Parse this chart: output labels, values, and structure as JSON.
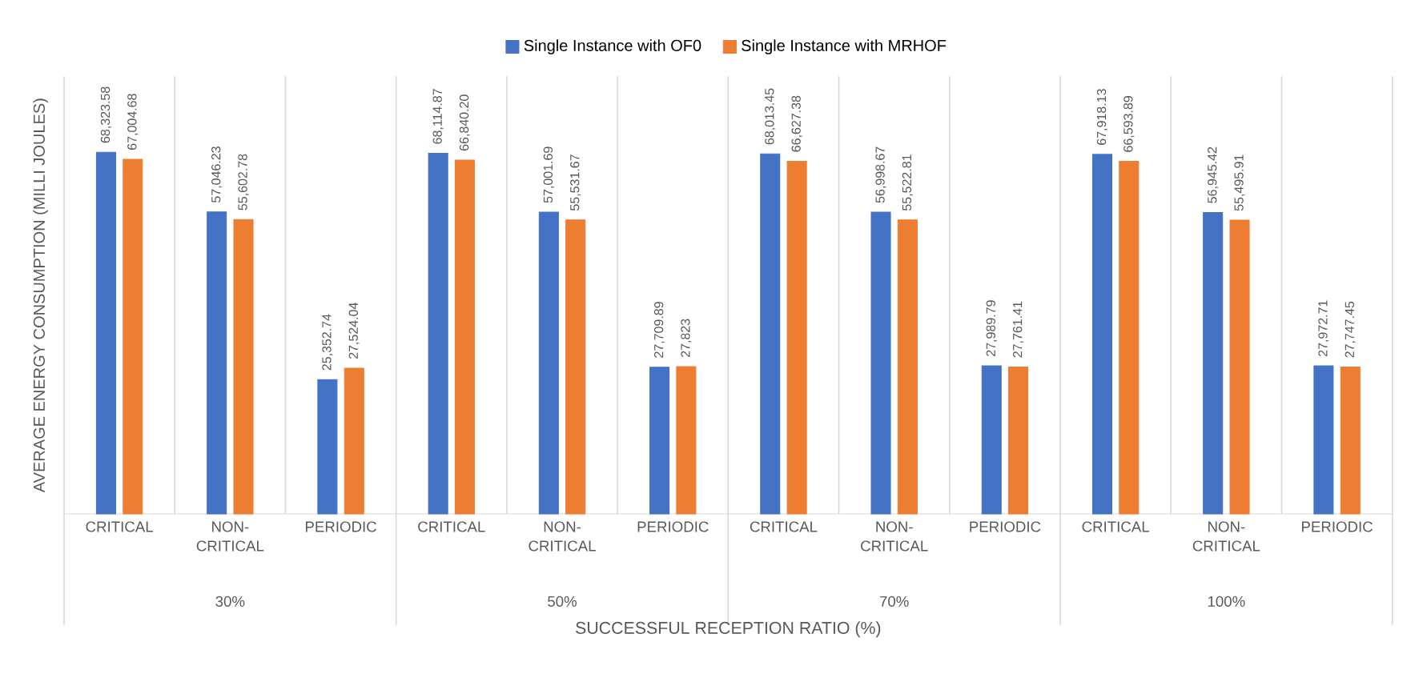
{
  "chart_data": {
    "type": "bar",
    "xlabel": "SUCCESSFUL RECEPTION RATIO (%)",
    "ylabel": "AVERAGE ENERGY CONSUMPTION (MILLI JOULES)",
    "categories": [
      "CRITICAL",
      "NON-CRITICAL",
      "PERIODIC",
      "CRITICAL",
      "NON-CRITICAL",
      "PERIODIC",
      "CRITICAL",
      "NON-CRITICAL",
      "PERIODIC",
      "CRITICAL",
      "NON-CRITICAL",
      "PERIODIC"
    ],
    "annotations": [
      "30%",
      "50%",
      "70%",
      "100%"
    ],
    "series": [
      {
        "name": "Single Instance with OF0",
        "color": "#4472c4",
        "values": [
          68323.58,
          57046.23,
          25352.74,
          68114.87,
          57001.69,
          27709.89,
          68013.45,
          56998.67,
          27989.79,
          67918.13,
          56945.42,
          27972.71
        ],
        "value_labels": [
          "68,323.58",
          "57,046.23",
          "25,352.74",
          "68,114.87",
          "57,001.69",
          "27,709.89",
          "68,013.45",
          "56,998.67",
          "27,989.79",
          "67,918.13",
          "56,945.42",
          "27,972.71"
        ]
      },
      {
        "name": "Single Instance with MRHOF",
        "color": "#ed7d31",
        "values": [
          67004.68,
          55602.78,
          27524.04,
          66840.2,
          55531.67,
          27823,
          66627.38,
          55522.81,
          27761.41,
          66593.89,
          55495.91,
          27747.45
        ],
        "value_labels": [
          "67,004.68",
          "55,602.78",
          "27,524.04",
          "66,840.20",
          "55,531.67",
          "27,823",
          "66,627.38",
          "55,522.81",
          "27,761.41",
          "66,593.89",
          "55,495.91",
          "27,747.45"
        ]
      }
    ],
    "grid": "x",
    "legend": "top"
  }
}
